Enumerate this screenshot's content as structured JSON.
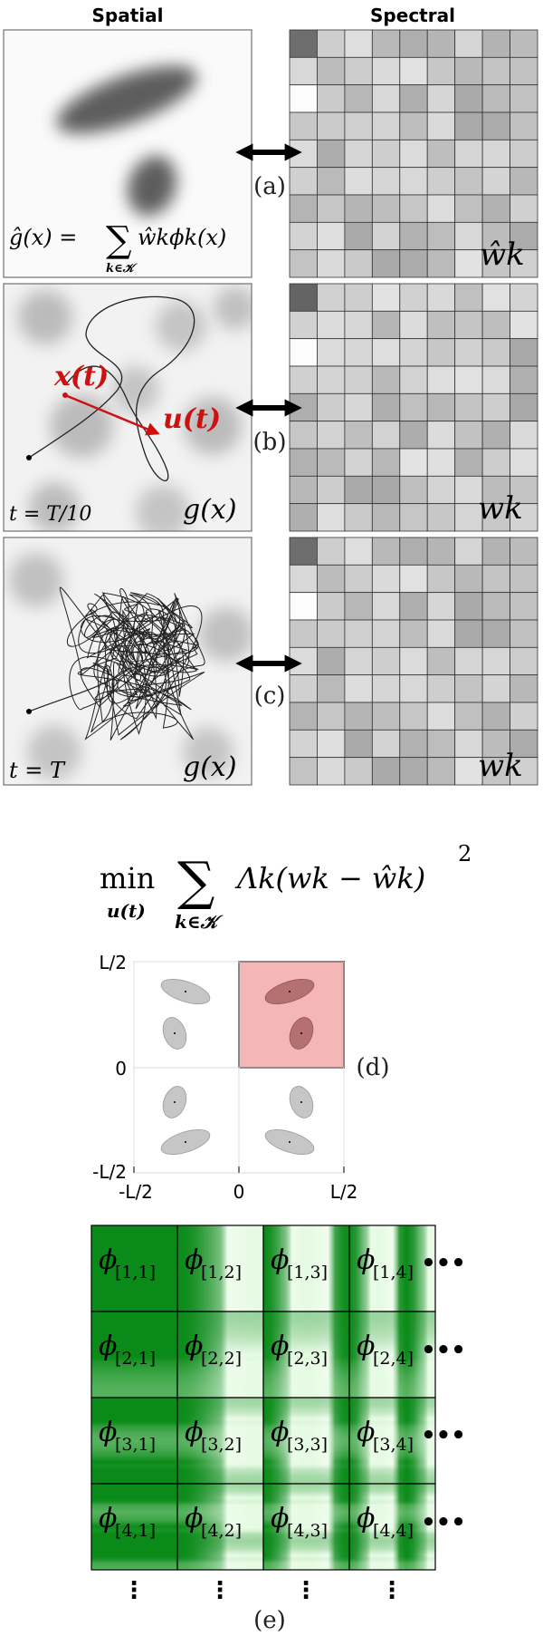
{
  "headers": {
    "spatial": "Spatial",
    "spectral": "Spectral"
  },
  "panel_labels": {
    "a": "(a)",
    "b": "(b)",
    "c": "(c)",
    "d": "(d)",
    "e": "(e)"
  },
  "panel_a": {
    "formula_lhs": "ĝ(x) =",
    "formula_sum": "∑",
    "formula_sum_sub": "k∈𝒦",
    "formula_rhs": "ŵkϕk(x)",
    "spectral_label": "ŵk"
  },
  "panel_b": {
    "pos_label": "x(t)",
    "ctrl_label": "u(t)",
    "time_label": "t = T/10",
    "field_label": "g(x)",
    "spectral_label": "wk",
    "highlight_color": "#cc1111"
  },
  "panel_c": {
    "time_label": "t = T",
    "field_label": "g(x)",
    "spectral_label": "wk"
  },
  "objective": {
    "min": "min",
    "min_sub": "u(t)",
    "sum": "∑",
    "sum_sub": "k∈𝒦",
    "body": "Λk(wk − ŵk)",
    "power": "2"
  },
  "panel_d": {
    "y_ticks": [
      "L/2",
      "0",
      "-L/2"
    ],
    "x_ticks": [
      "-L/2",
      "0",
      "L/2"
    ],
    "highlight_color": "#f4b6b6"
  },
  "panel_e": {
    "bases": [
      [
        "ϕ",
        "[1,1]",
        "[1,2]",
        "[1,3]",
        "[1,4]"
      ],
      [
        "ϕ",
        "[2,1]",
        "[2,2]",
        "[2,3]",
        "[2,4]"
      ],
      [
        "ϕ",
        "[3,1]",
        "[3,2]",
        "[3,3]",
        "[3,4]"
      ],
      [
        "ϕ",
        "[4,1]",
        "[4,2]",
        "[4,3]",
        "[4,4]"
      ]
    ],
    "ellipsis_h": "•••",
    "ellipsis_v": "⋮",
    "green_dark": "#0a8a18",
    "green_light": "#e6fbe3"
  }
}
